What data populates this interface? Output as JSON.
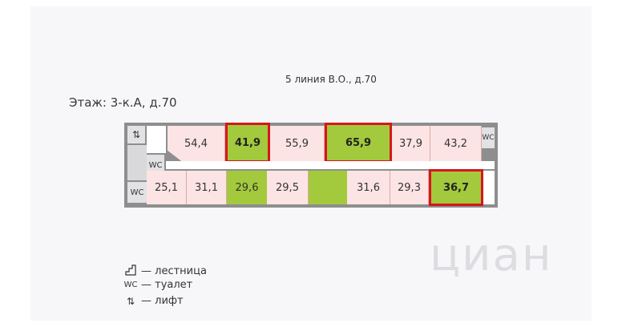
{
  "header": {
    "street": "5 линия В.О., д.70",
    "floor_title": "Этаж: 3-к.А, д.70"
  },
  "plan": {
    "top_row": [
      "54,4",
      "41,9",
      "55,9",
      "65,9",
      "37,9",
      "43,2"
    ],
    "bottom_row": [
      "25,1",
      "31,1",
      "29,6",
      "29,5",
      "",
      "31,6",
      "29,3",
      "36,7"
    ],
    "symbols": {
      "lift": "⇅",
      "wc": "WC"
    }
  },
  "legend": {
    "stairs": "— лестница",
    "toilet": "— туалет",
    "lift": "— лифт"
  },
  "watermark": "циан",
  "colors": {
    "available": "#a3c93c",
    "occupied": "#fde4e4",
    "highlight": "#d7161b"
  }
}
